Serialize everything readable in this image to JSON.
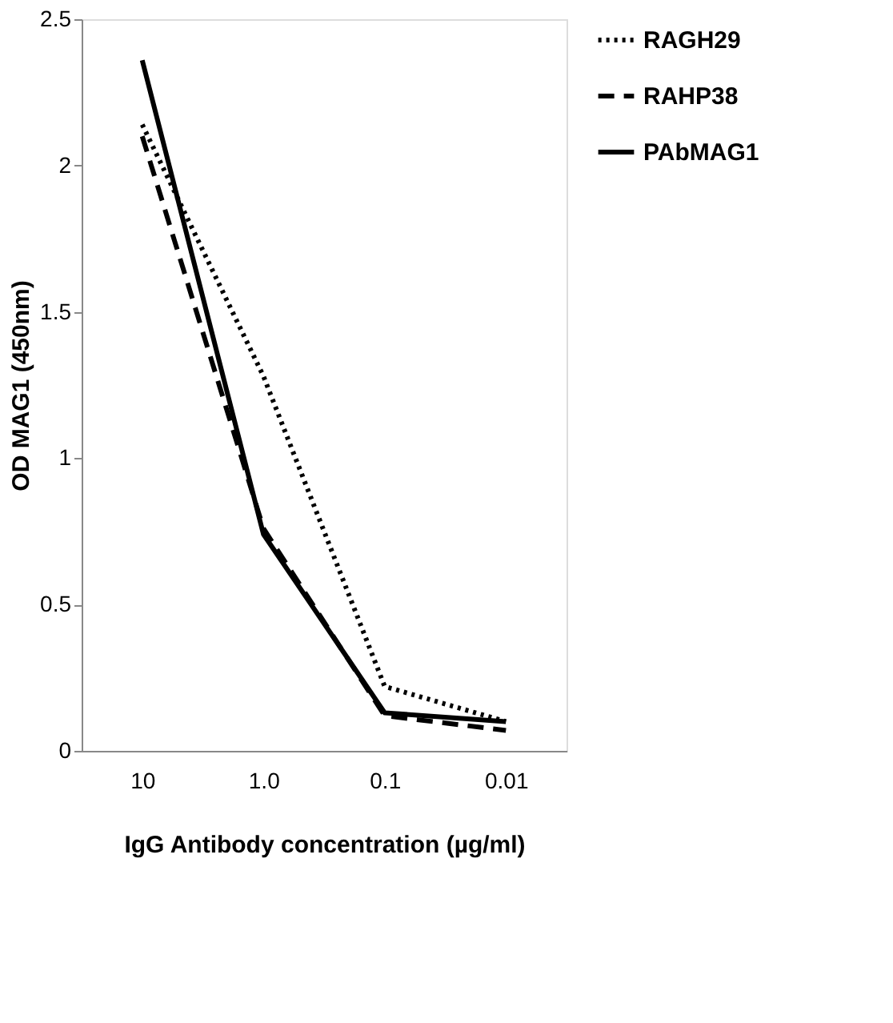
{
  "chart_data": {
    "type": "line",
    "xlabel": "IgG Antibody concentration (µg/ml)",
    "ylabel": "OD MAG1 (450nm)",
    "categories": [
      "10",
      "1.0",
      "0.1",
      "0.01"
    ],
    "series": [
      {
        "name": "RAGH29",
        "color": "#000000",
        "line_style": "dotted",
        "values": [
          2.14,
          1.28,
          0.22,
          0.1
        ]
      },
      {
        "name": "RAHP38",
        "color": "#000000",
        "line_style": "dashed",
        "values": [
          2.1,
          0.76,
          0.12,
          0.07
        ]
      },
      {
        "name": "PAbMAG1",
        "color": "#000000",
        "line_style": "solid",
        "values": [
          2.36,
          0.74,
          0.13,
          0.1
        ]
      }
    ],
    "ylim": [
      0,
      2.5
    ],
    "yticks": [
      0,
      0.5,
      1,
      1.5,
      2,
      2.5
    ],
    "grid": false,
    "legend": "right",
    "marker": "none"
  }
}
